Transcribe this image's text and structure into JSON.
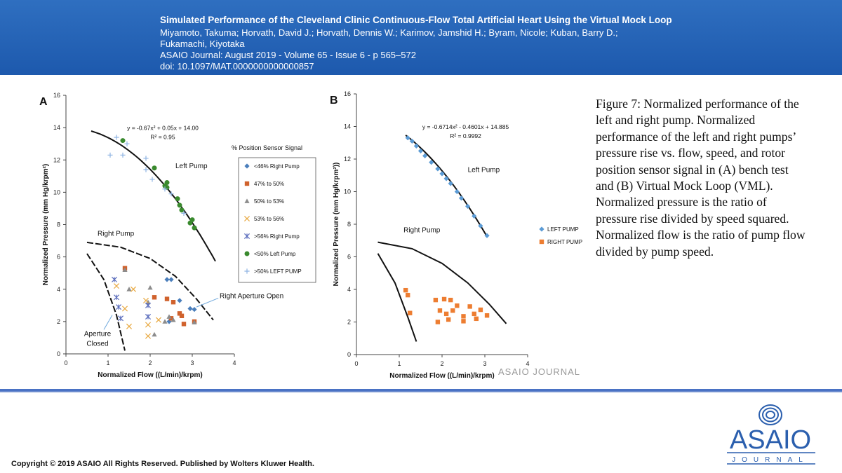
{
  "header": {
    "title": "Simulated Performance of the Cleveland Clinic Continuous-Flow Total Artificial Heart Using the Virtual Mock Loop",
    "authors_line1": "Miyamoto, Takuma; Horvath, David J.; Horvath, Dennis W.; Karimov, Jamshid H.; Byram, Nicole; Kuban, Barry D.;",
    "authors_line2": "Fukamachi, Kiyotaka",
    "journal": "ASAIO Journal: August 2019 - Volume 65 - Issue 6 - p 565–572",
    "doi": "doi: 10.1097/MAT.0000000000000857"
  },
  "caption": "Figure 7: Normalized performance of the left and right pump. Normalized performance of the left and right pumps’ pressure rise vs. flow, speed, and rotor position sensor signal in (A) bench test and (B) Virtual Mock Loop (VML). Normalized pressure is the ratio of pressure rise divided by speed squared. Normalized flow is the ratio of pump flow divided by pump speed.",
  "copyright": "Copyright © 2019 ASAIO All Rights Reserved. Published by Wolters Kluwer Health.",
  "logo": {
    "name": "ASAIO",
    "sub": "JOURNAL",
    "color": "#2b5fae"
  },
  "watermark": "ASAIO JOURNAL",
  "chart_data": [
    {
      "panel": "A",
      "type": "scatter",
      "xlabel": "Normalized Flow  ((L/min)/krpm)",
      "ylabel": "Normalized Pressure  (mm Hg/krpm²)",
      "xlim": [
        0,
        4
      ],
      "ylim": [
        0,
        16
      ],
      "xticks": [
        "0",
        "1",
        "2",
        "3",
        "4"
      ],
      "yticks": [
        "0",
        "2",
        "4",
        "6",
        "8",
        "10",
        "12",
        "14",
        "16"
      ],
      "equation": "y = -0.67x² + 0.05x + 14.00",
      "r2": "R² = 0.95",
      "legend_title": "% Position Sensor  Signal",
      "annotations": {
        "left_pump": "Left Pump",
        "right_pump": "Right Pump",
        "right_open": "Right Aperture Open",
        "aperture_closed_1": "Aperture",
        "aperture_closed_2": "Closed"
      },
      "series": [
        {
          "name": "<46% Right Pump",
          "marker": "diamond",
          "color": "#4a7ebb",
          "points": [
            [
              2.4,
              4.6
            ],
            [
              2.5,
              4.6
            ],
            [
              2.95,
              2.8
            ],
            [
              3.05,
              2.75
            ],
            [
              2.7,
              3.3
            ],
            [
              2.45,
              2.0
            ]
          ]
        },
        {
          "name": "47% to 50%",
          "marker": "square",
          "color": "#d0622d",
          "points": [
            [
              1.4,
              5.3
            ],
            [
              2.1,
              3.5
            ],
            [
              2.4,
              3.4
            ],
            [
              2.55,
              3.2
            ],
            [
              2.7,
              2.5
            ],
            [
              2.75,
              2.35
            ],
            [
              2.8,
              1.85
            ],
            [
              3.05,
              2.0
            ],
            [
              2.5,
              2.2
            ]
          ]
        },
        {
          "name": "50% to 53%",
          "marker": "triangle",
          "color": "#8c8c8c",
          "points": [
            [
              1.4,
              5.2
            ],
            [
              1.5,
              4.0
            ],
            [
              2.0,
              4.1
            ],
            [
              2.1,
              1.2
            ],
            [
              2.35,
              2.0
            ],
            [
              2.45,
              2.3
            ],
            [
              2.55,
              2.1
            ],
            [
              1.95,
              3.2
            ],
            [
              3.05,
              1.95
            ]
          ]
        },
        {
          "name": "53% to 56%",
          "marker": "x",
          "color": "#e8a840",
          "points": [
            [
              1.2,
              4.2
            ],
            [
              1.4,
              2.8
            ],
            [
              1.5,
              1.7
            ],
            [
              1.9,
              3.3
            ],
            [
              1.95,
              1.8
            ],
            [
              1.95,
              1.1
            ],
            [
              2.2,
              2.1
            ],
            [
              1.6,
              4.0
            ]
          ]
        },
        {
          "name": ">56% Right Pump",
          "marker": "asterisk",
          "color": "#5b6dbd",
          "points": [
            [
              1.15,
              4.6
            ],
            [
              1.2,
              3.5
            ],
            [
              1.25,
              2.9
            ],
            [
              1.3,
              2.2
            ],
            [
              1.95,
              2.3
            ],
            [
              1.95,
              3.0
            ]
          ]
        },
        {
          "name": "<50% Left Pump",
          "marker": "circle",
          "color": "#3a8a2e",
          "points": [
            [
              1.35,
              13.2
            ],
            [
              2.1,
              11.5
            ],
            [
              2.35,
              10.4
            ],
            [
              2.4,
              10.6
            ],
            [
              2.4,
              10.3
            ],
            [
              2.65,
              9.6
            ],
            [
              2.7,
              9.2
            ],
            [
              2.75,
              8.9
            ],
            [
              2.95,
              8.1
            ],
            [
              3.0,
              8.3
            ],
            [
              3.05,
              7.8
            ]
          ]
        },
        {
          "name": ">50% LEFT PUMP",
          "marker": "plus",
          "color": "#8fb4e3",
          "points": [
            [
              1.05,
              12.3
            ],
            [
              1.2,
              13.4
            ],
            [
              1.35,
              12.3
            ],
            [
              1.9,
              12.1
            ],
            [
              1.9,
              11.4
            ],
            [
              2.05,
              10.8
            ],
            [
              2.35,
              10.2
            ],
            [
              2.5,
              9.9
            ],
            [
              2.8,
              8.7
            ],
            [
              1.45,
              13.0
            ]
          ]
        }
      ]
    },
    {
      "panel": "B",
      "type": "scatter",
      "xlabel": "Normalized Flow  ((L/min)/krpm)",
      "ylabel": "Normalized Pressure  (mm Hg/krpm²))",
      "xlim": [
        0,
        4
      ],
      "ylim": [
        0,
        16
      ],
      "xticks": [
        "0",
        "1",
        "2",
        "3",
        "4"
      ],
      "yticks": [
        "0",
        "2",
        "4",
        "6",
        "8",
        "10",
        "12",
        "14",
        "16"
      ],
      "equation": "y = -0.6714x² - 0.4601x + 14.885",
      "r2": "R² = 0.9992",
      "annotations": {
        "left_pump": "Left Pump",
        "right_pump": "Right Pump"
      },
      "series": [
        {
          "name": "LEFT PUMP",
          "marker": "diamond",
          "color": "#5b9bd5",
          "points": [
            [
              1.2,
              13.3
            ],
            [
              1.3,
              13.1
            ],
            [
              1.4,
              12.8
            ],
            [
              1.5,
              12.5
            ],
            [
              1.6,
              12.2
            ],
            [
              1.75,
              11.8
            ],
            [
              1.9,
              11.4
            ],
            [
              2.0,
              11.1
            ],
            [
              2.1,
              10.8
            ],
            [
              2.2,
              10.5
            ],
            [
              2.35,
              10.0
            ],
            [
              2.45,
              9.6
            ],
            [
              2.6,
              9.1
            ],
            [
              2.75,
              8.5
            ],
            [
              2.9,
              7.9
            ],
            [
              3.05,
              7.3
            ]
          ]
        },
        {
          "name": "RIGHT PUMP",
          "marker": "square",
          "color": "#ed7d31",
          "points": [
            [
              1.15,
              3.95
            ],
            [
              1.2,
              3.65
            ],
            [
              1.25,
              2.55
            ],
            [
              1.85,
              3.35
            ],
            [
              1.95,
              2.7
            ],
            [
              1.9,
              2.0
            ],
            [
              2.05,
              3.4
            ],
            [
              2.1,
              2.5
            ],
            [
              2.15,
              2.15
            ],
            [
              2.2,
              3.35
            ],
            [
              2.25,
              2.7
            ],
            [
              2.35,
              3.0
            ],
            [
              2.5,
              2.35
            ],
            [
              2.5,
              2.05
            ],
            [
              2.65,
              2.95
            ],
            [
              2.75,
              2.5
            ],
            [
              2.8,
              2.2
            ],
            [
              2.9,
              2.75
            ],
            [
              3.05,
              2.4
            ]
          ]
        }
      ]
    }
  ]
}
